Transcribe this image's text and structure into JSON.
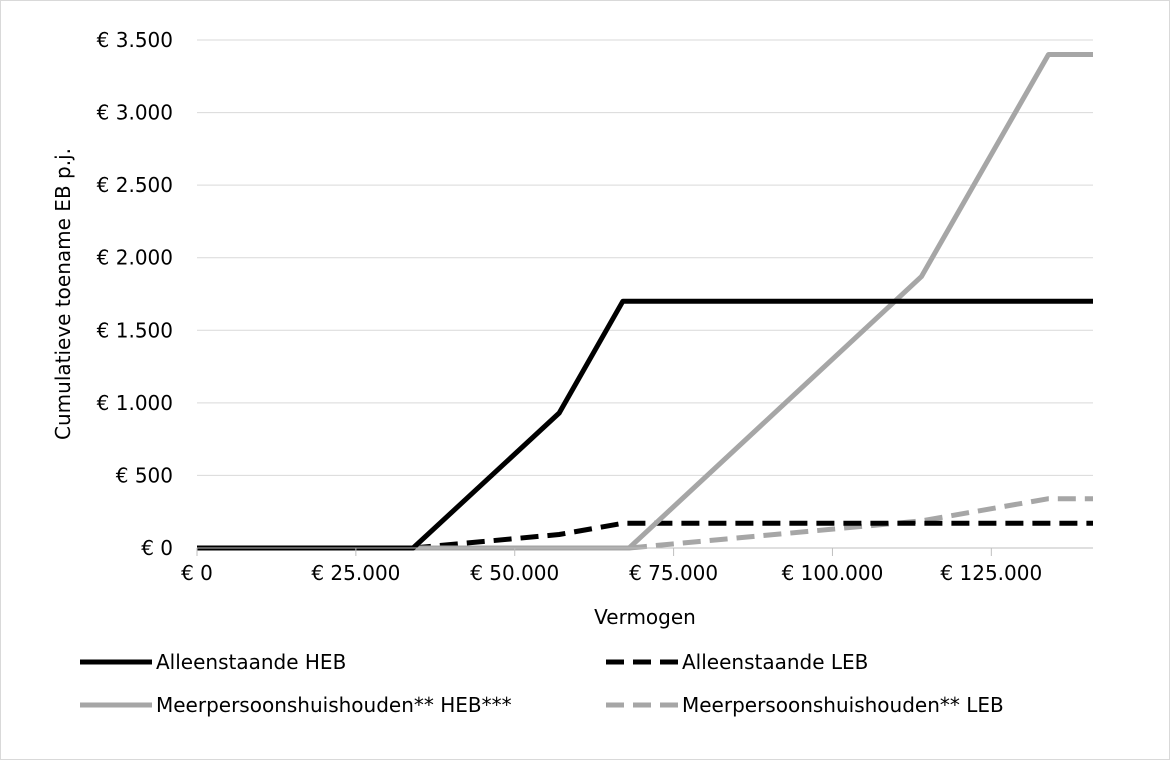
{
  "chart_data": {
    "type": "line",
    "xlabel": "Vermogen",
    "ylabel": "Cumulatieve toename EB p.j.",
    "xlim": [
      0,
      141000
    ],
    "ylim": [
      0,
      3500
    ],
    "x_ticks": [
      0,
      25000,
      50000,
      75000,
      100000,
      125000
    ],
    "x_tick_labels": [
      "€ 0",
      "€ 25.000",
      "€ 50.000",
      "€ 75.000",
      "€ 100.000",
      "€ 125.000"
    ],
    "y_ticks": [
      0,
      500,
      1000,
      1500,
      2000,
      2500,
      3000,
      3500
    ],
    "y_tick_labels": [
      "€ 0",
      "€ 500",
      "€ 1.000",
      "€ 1.500",
      "€ 2.000",
      "€ 2.500",
      "€ 3.000",
      "€ 3.500"
    ],
    "grid": "horizontal",
    "legend_position": "bottom",
    "series": [
      {
        "name": "Alleenstaande HEB",
        "color": "#000000",
        "dash": "solid",
        "points": [
          [
            0,
            0
          ],
          [
            34000,
            0
          ],
          [
            57000,
            930
          ],
          [
            67000,
            1700
          ],
          [
            141000,
            1700
          ]
        ]
      },
      {
        "name": "Alleenstaande LEB",
        "color": "#000000",
        "dash": "dashed",
        "points": [
          [
            0,
            0
          ],
          [
            34000,
            0
          ],
          [
            57000,
            93
          ],
          [
            67000,
            170
          ],
          [
            141000,
            170
          ]
        ]
      },
      {
        "name": "Meerpersoonshuishouden** HEB***",
        "color": "#a6a6a6",
        "dash": "solid",
        "points": [
          [
            0,
            0
          ],
          [
            68000,
            0
          ],
          [
            114000,
            1870
          ],
          [
            134000,
            3400
          ],
          [
            141000,
            3400
          ]
        ]
      },
      {
        "name": "Meerpersoonshuishouden** LEB",
        "color": "#a6a6a6",
        "dash": "dashed",
        "points": [
          [
            0,
            0
          ],
          [
            68000,
            0
          ],
          [
            114000,
            187
          ],
          [
            134000,
            340
          ],
          [
            141000,
            340
          ]
        ]
      }
    ]
  }
}
